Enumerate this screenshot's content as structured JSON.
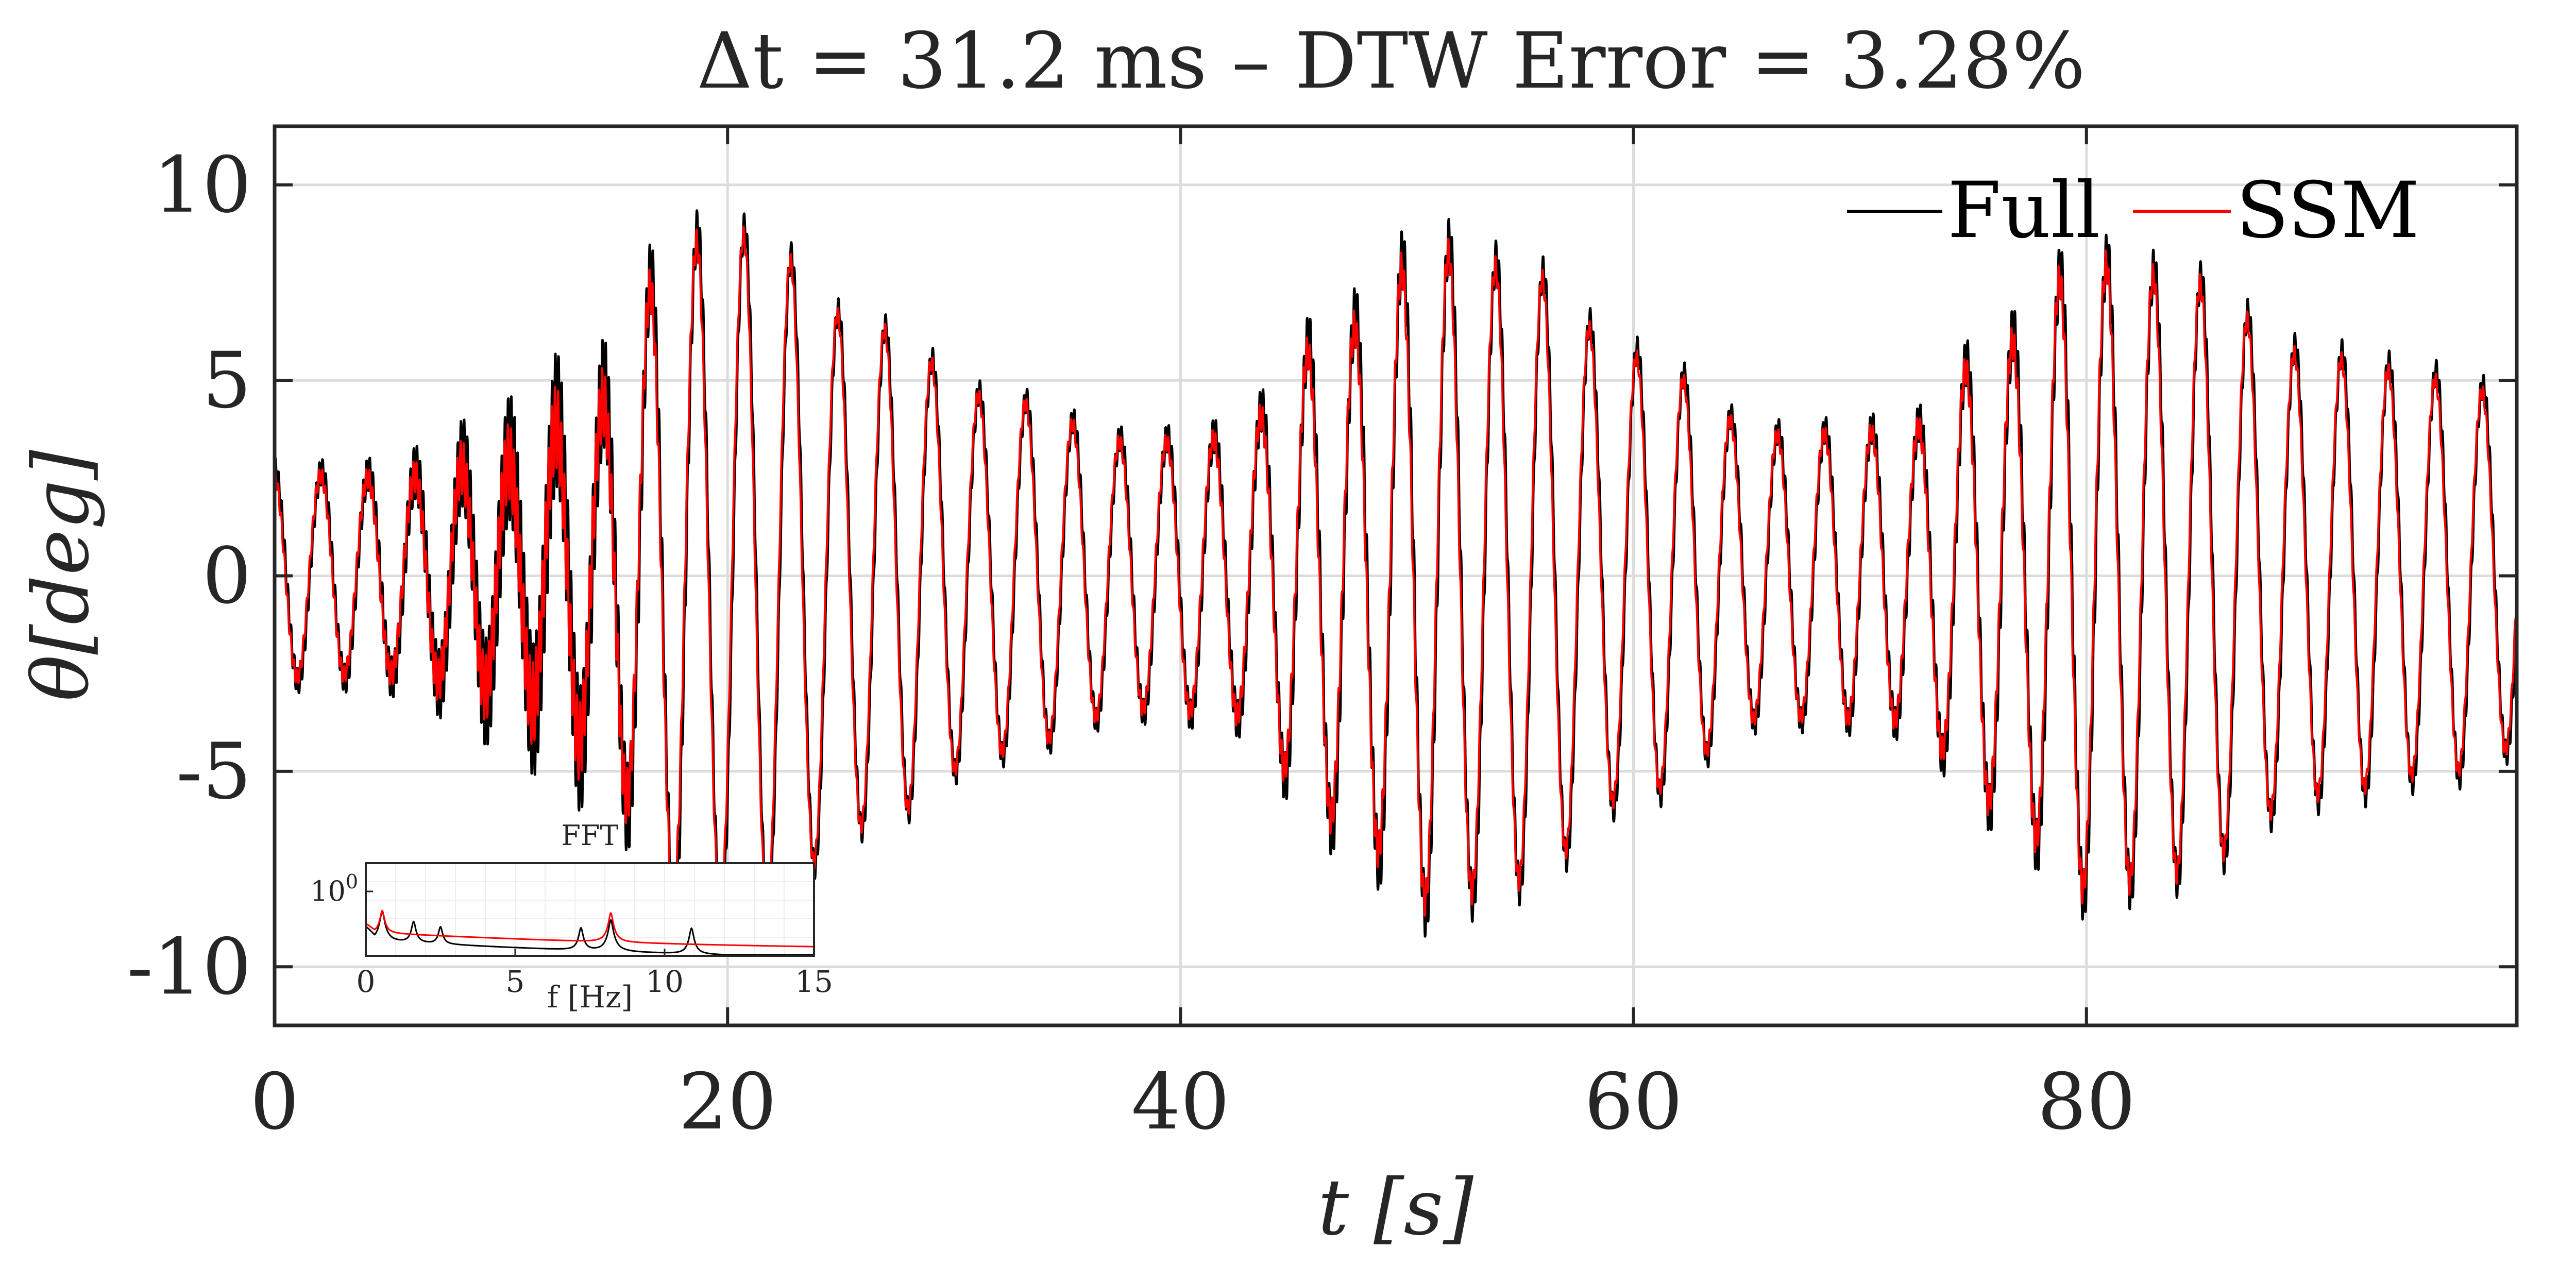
{
  "chart_data": [
    {
      "type": "line",
      "title": "Δt = 31.2 ms – DTW Error = 3.28%",
      "xlabel": "t [s]",
      "ylabel": "θ[deg]",
      "xlim": [
        0,
        99
      ],
      "ylim": [
        -11.5,
        11.5
      ],
      "xticks": [
        0,
        20,
        40,
        60,
        80
      ],
      "xtick_labels": [
        "0",
        "20",
        "40",
        "60",
        "80"
      ],
      "yticks": [
        10,
        5,
        0,
        -5,
        -10
      ],
      "ytick_labels": [
        "10",
        "5",
        "0",
        "-5",
        "-10"
      ],
      "grid": true,
      "legend_position": "top-right",
      "series": [
        {
          "name": "Full",
          "color": "#000000",
          "description": "amplitude envelope (deg) sampled over time, main oscillation ~0.48 Hz plus high-frequency ripple",
          "envelope_t": [
            0,
            5,
            10,
            14,
            18,
            21,
            26,
            32,
            38,
            42,
            47,
            51,
            55,
            60,
            66,
            72,
            76,
            80,
            84,
            90,
            96,
            99
          ],
          "envelope_amp": [
            2.7,
            2.6,
            3.0,
            4.5,
            8.8,
            8.9,
            6.5,
            4.6,
            3.5,
            3.6,
            6.5,
            8.6,
            8.0,
            5.8,
            3.7,
            3.8,
            6.0,
            8.2,
            7.8,
            5.8,
            5.2,
            4.5
          ]
        },
        {
          "name": "SSM",
          "color": "#ff0000",
          "description": "reduced-order model response tracking the full model",
          "envelope_t": [
            0,
            5,
            10,
            14,
            18,
            21,
            26,
            32,
            38,
            42,
            47,
            51,
            55,
            60,
            66,
            72,
            76,
            80,
            84,
            90,
            96,
            99
          ],
          "envelope_amp": [
            2.6,
            2.5,
            2.9,
            4.3,
            8.5,
            8.7,
            6.4,
            4.5,
            3.4,
            3.5,
            6.2,
            8.3,
            7.8,
            5.6,
            3.6,
            3.7,
            5.8,
            8.0,
            7.6,
            5.6,
            5.0,
            4.4
          ]
        }
      ]
    },
    {
      "type": "line",
      "title": "FFT",
      "xlabel": "f [Hz]",
      "ylabel": "",
      "xlim": [
        0,
        15
      ],
      "yscale": "log",
      "xticks": [
        0,
        5,
        10,
        15
      ],
      "xtick_labels": [
        "0",
        "5",
        "10",
        "15"
      ],
      "ytick_label_base": "10",
      "ytick_label_exp": "0",
      "grid": true,
      "series": [
        {
          "name": "Full",
          "color": "#000000",
          "peaks_hz": [
            0.55,
            1.6,
            2.5,
            7.2,
            8.2,
            10.9
          ],
          "peak_rel_height": [
            1.0,
            0.35,
            0.2,
            0.2,
            0.45,
            0.2
          ]
        },
        {
          "name": "SSM",
          "color": "#ff0000",
          "peaks_hz": [
            0.55,
            8.2
          ],
          "peak_rel_height": [
            1.0,
            0.85
          ]
        }
      ]
    }
  ]
}
